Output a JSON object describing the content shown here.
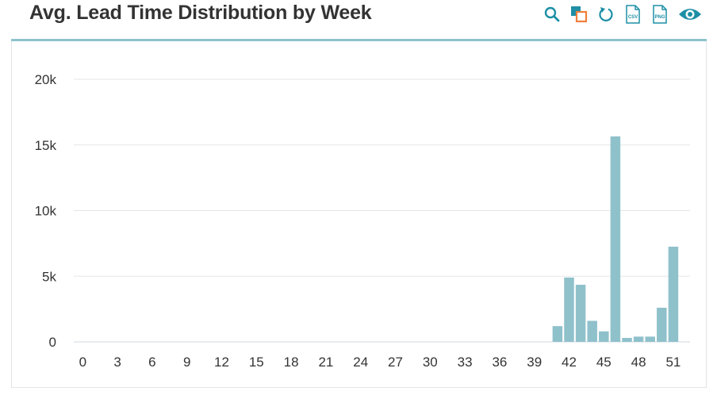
{
  "header": {
    "title": "Avg. Lead Time Distribution by Week",
    "icons": [
      "search-icon",
      "copy-icon",
      "refresh-icon",
      "csv-export-icon",
      "png-export-icon",
      "eye-icon"
    ],
    "csv_label": "CSV",
    "png_label": "PNG"
  },
  "colors": {
    "bar": "#8fc1cb",
    "grid": "#e6e6e6",
    "header_line": "#8cc3cc",
    "icon_teal": "#1d8fa6",
    "icon_orange": "#f07f3c"
  },
  "chart_data": {
    "type": "bar",
    "title": "Avg. Lead Time Distribution by Week",
    "xlabel": "",
    "ylabel": "",
    "ylim": [
      0,
      20000
    ],
    "grid": true,
    "yticks": [
      0,
      5000,
      10000,
      15000,
      20000
    ],
    "ytick_labels": [
      "0",
      "5k",
      "10k",
      "15k",
      "20k"
    ],
    "xticks": [
      0,
      3,
      6,
      9,
      12,
      15,
      18,
      21,
      24,
      27,
      30,
      33,
      36,
      39,
      42,
      45,
      48,
      51
    ],
    "xtick_labels": [
      "0",
      "3",
      "6",
      "9",
      "12",
      "15",
      "18",
      "21",
      "24",
      "27",
      "30",
      "33",
      "36",
      "39",
      "42",
      "45",
      "48",
      "51"
    ],
    "x": [
      0,
      1,
      2,
      3,
      4,
      5,
      6,
      7,
      8,
      9,
      10,
      11,
      12,
      13,
      14,
      15,
      16,
      17,
      18,
      19,
      20,
      21,
      22,
      23,
      24,
      25,
      26,
      27,
      28,
      29,
      30,
      31,
      32,
      33,
      34,
      35,
      36,
      37,
      38,
      39,
      40,
      41,
      42,
      43,
      44,
      45,
      46,
      47,
      48,
      49,
      50,
      51
    ],
    "values": [
      0,
      0,
      0,
      0,
      0,
      0,
      0,
      0,
      0,
      0,
      0,
      0,
      0,
      0,
      0,
      0,
      0,
      0,
      0,
      0,
      0,
      0,
      0,
      0,
      0,
      0,
      0,
      0,
      0,
      0,
      0,
      0,
      0,
      0,
      0,
      0,
      0,
      0,
      0,
      0,
      0,
      1200,
      4900,
      4350,
      1600,
      800,
      15650,
      300,
      400,
      400,
      2600,
      7250
    ]
  }
}
